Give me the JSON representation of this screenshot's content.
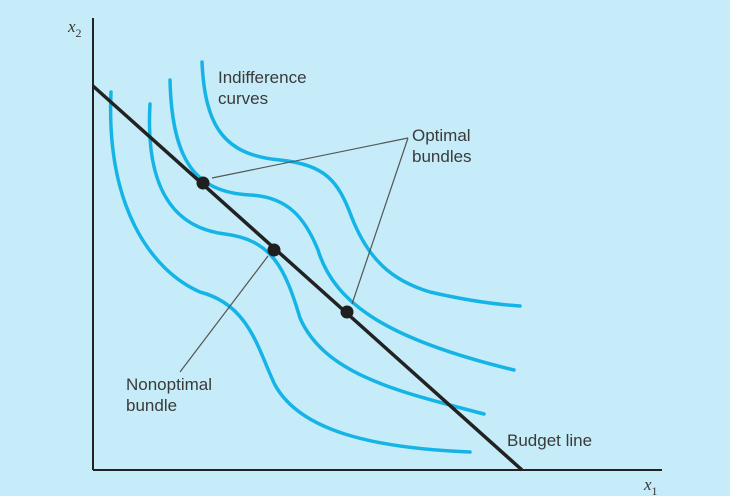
{
  "axes": {
    "y_var": "x",
    "y_sub": "2",
    "x_var": "x",
    "x_sub": "1"
  },
  "labels": {
    "indifference_line1": "Indifference",
    "indifference_line2": "curves",
    "optimal_line1": "Optimal",
    "optimal_line2": "bundles",
    "nonoptimal_line1": "Nonoptimal",
    "nonoptimal_line2": "bundle",
    "budget_line": "Budget line"
  },
  "colors": {
    "background": "#c5ecf8",
    "curves": "#15b4e6",
    "line": "#222222",
    "pointer": "#555555"
  }
}
